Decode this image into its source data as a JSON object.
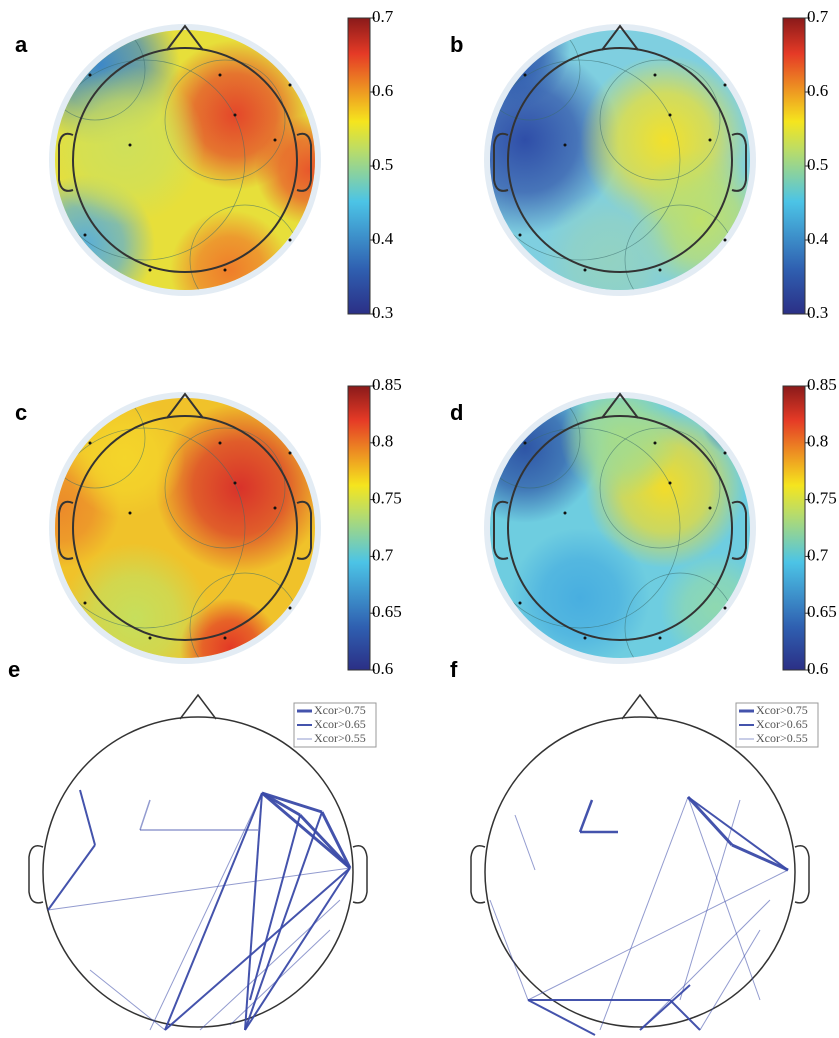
{
  "panels": [
    {
      "label": "a",
      "colorbar_ticks": [
        0.7,
        0.6,
        0.5,
        0.4,
        0.3
      ]
    },
    {
      "label": "b",
      "colorbar_ticks": [
        0.7,
        0.6,
        0.5,
        0.4,
        0.3
      ]
    },
    {
      "label": "c",
      "colorbar_ticks": [
        0.85,
        0.8,
        0.75,
        0.7,
        0.65,
        0.6
      ]
    },
    {
      "label": "d",
      "colorbar_ticks": [
        0.85,
        0.8,
        0.75,
        0.7,
        0.65,
        0.6
      ]
    },
    {
      "label": "e",
      "legend": [
        "Xcor>0.75",
        "Xcor>0.65",
        "Xcor>0.55"
      ]
    },
    {
      "label": "f",
      "legend": [
        "Xcor>0.75",
        "Xcor>0.65",
        "Xcor>0.55"
      ]
    }
  ]
}
